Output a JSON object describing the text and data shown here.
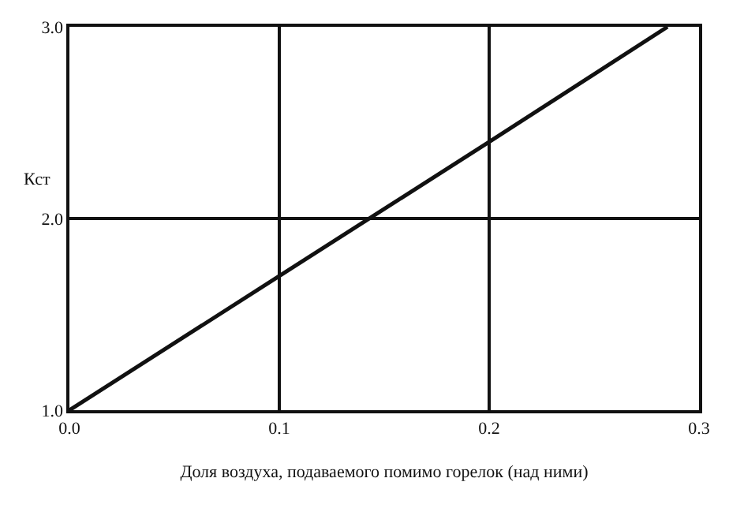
{
  "chart_data": {
    "type": "line",
    "xlabel": "Доля воздуха, подаваемого помимо горелок (над ними)",
    "ylabel": "Кст",
    "x": [
      0,
      0.1,
      0.2,
      0.285
    ],
    "series": [
      {
        "color": "#111111",
        "values": [
          1.0,
          1.7,
          2.4,
          3.0
        ]
      }
    ],
    "xlim": [
      0,
      0.3
    ],
    "xticks": [
      {
        "value": 0,
        "label": "0.0"
      },
      {
        "value": 0.1,
        "label": "0.1"
      },
      {
        "value": 0.2,
        "label": "0.2"
      },
      {
        "value": 0.3,
        "label": "0.3"
      }
    ],
    "ylim": [
      1,
      3
    ],
    "yticks": [
      {
        "value": 1,
        "label": "1.0"
      },
      {
        "value": 2,
        "label": "2.0"
      },
      {
        "value": 3,
        "label": "3.0"
      }
    ],
    "grid": true,
    "marker": "none",
    "line_style": "solid"
  }
}
